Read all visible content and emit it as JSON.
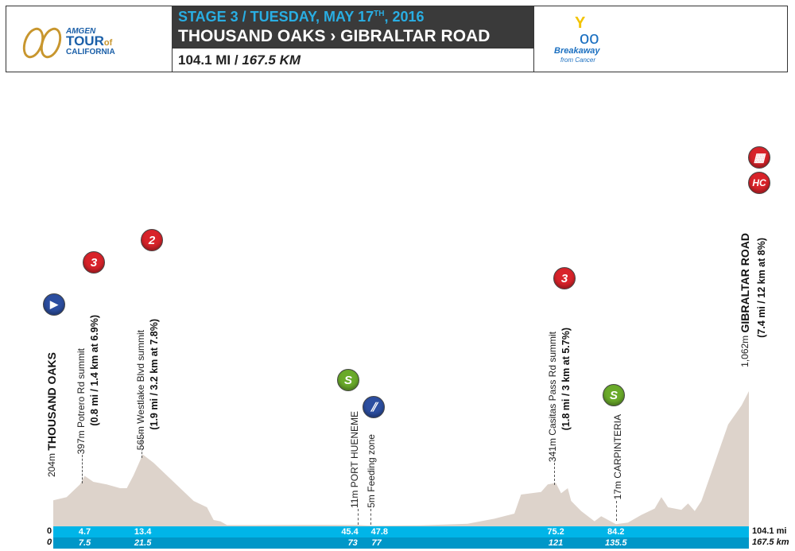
{
  "header": {
    "logo": {
      "line1": "AMGEN",
      "line2": "TOUR",
      "line2b": "of",
      "line3": "CALIFORNIA"
    },
    "stage_line": "STAGE 3 / TUESDAY, MAY 17",
    "stage_sup": "TH",
    "stage_year": ", 2016",
    "route": "THOUSAND OAKS › GIBRALTAR ROAD",
    "distance_mi": "104.1 MI /",
    "distance_km": "167.5 KM",
    "sponsor": {
      "line1": "Breakaway",
      "line2": "from Cancer"
    }
  },
  "colors": {
    "profile": "#ddd3cb",
    "bar_mi": "#00b5e8",
    "bar_km": "#0097c8",
    "climb_icon": "#d8232a",
    "sprint_icon": "#6aaa2a",
    "info_icon": "#2c4ea0",
    "stage_text": "#29aee3"
  },
  "axis": {
    "start_mi": "0",
    "start_km": "0",
    "end_mi": "104.1 mi",
    "end_km": "167.5 km"
  },
  "chart_data": {
    "type": "area",
    "xlabel": "",
    "ylabel": "",
    "x_unit": "mi",
    "xlim": [
      0,
      104.1
    ],
    "ylim": [
      0,
      1062
    ],
    "profile": [
      [
        0,
        204
      ],
      [
        2,
        230
      ],
      [
        4,
        330
      ],
      [
        4.7,
        397
      ],
      [
        6,
        350
      ],
      [
        8,
        330
      ],
      [
        10,
        300
      ],
      [
        11,
        300
      ],
      [
        12,
        400
      ],
      [
        13.4,
        565
      ],
      [
        15,
        500
      ],
      [
        17,
        400
      ],
      [
        19,
        300
      ],
      [
        21,
        200
      ],
      [
        23,
        150
      ],
      [
        24,
        50
      ],
      [
        25,
        40
      ],
      [
        26,
        10
      ],
      [
        30,
        10
      ],
      [
        40,
        12
      ],
      [
        45.4,
        11
      ],
      [
        47.8,
        5
      ],
      [
        55,
        8
      ],
      [
        62,
        20
      ],
      [
        66,
        60
      ],
      [
        69,
        100
      ],
      [
        70,
        250
      ],
      [
        73,
        270
      ],
      [
        74,
        330
      ],
      [
        75.2,
        341
      ],
      [
        76,
        260
      ],
      [
        77,
        300
      ],
      [
        77.5,
        200
      ],
      [
        79,
        120
      ],
      [
        81,
        40
      ],
      [
        82,
        80
      ],
      [
        84.2,
        17
      ],
      [
        86,
        30
      ],
      [
        88,
        90
      ],
      [
        90,
        140
      ],
      [
        91,
        230
      ],
      [
        92,
        150
      ],
      [
        94,
        130
      ],
      [
        95,
        180
      ],
      [
        96,
        120
      ],
      [
        97,
        200
      ],
      [
        99,
        500
      ],
      [
        101,
        800
      ],
      [
        103,
        950
      ],
      [
        104.1,
        1062
      ]
    ],
    "ticks": [
      {
        "mi": "4.7",
        "km": "7.5",
        "x": 4.7
      },
      {
        "mi": "13.4",
        "km": "21.5",
        "x": 13.4
      },
      {
        "mi": "45.4",
        "km": "73",
        "x": 45.4
      },
      {
        "mi": "47.8",
        "km": "77",
        "x": 47.8
      },
      {
        "mi": "75.2",
        "km": "121",
        "x": 75.2
      },
      {
        "mi": "84.2",
        "km": "135.5",
        "x": 84.2
      }
    ],
    "markers": [
      {
        "type": "start",
        "icon": "play",
        "elev": "204m",
        "name": "THOUSAND OAKS",
        "detail": "",
        "x": 0
      },
      {
        "type": "climb",
        "icon": "3",
        "elev": "397m",
        "name": "Potrero Rd summit",
        "detail": "(0.8 mi / 1.4 km at 6.9%)",
        "x": 4.7
      },
      {
        "type": "climb",
        "icon": "2",
        "elev": "565m",
        "name": "Westlake Blvd summit",
        "detail": "(1.9 mi / 3.2 km at 7.8%)",
        "x": 13.4
      },
      {
        "type": "sprint",
        "icon": "S",
        "elev": "11m",
        "name": "PORT HUENEME",
        "detail": "",
        "x": 45.4
      },
      {
        "type": "feed",
        "icon": "feed",
        "elev": "5m",
        "name": "Feeding zone",
        "detail": "",
        "x": 47.8
      },
      {
        "type": "climb",
        "icon": "3",
        "elev": "341m",
        "name": "Casitas Pass Rd summit",
        "detail": "(1.8 mi / 3 km at 5.7%)",
        "x": 75.2
      },
      {
        "type": "sprint",
        "icon": "S",
        "elev": "17m",
        "name": "CARPINTERIA",
        "detail": "",
        "x": 84.2
      },
      {
        "type": "finish",
        "icon": "HC",
        "elev": "1,062m",
        "name": "GIBRALTAR ROAD",
        "detail": "(7.4 mi / 12 km at 8%)",
        "x": 104.1
      }
    ]
  }
}
